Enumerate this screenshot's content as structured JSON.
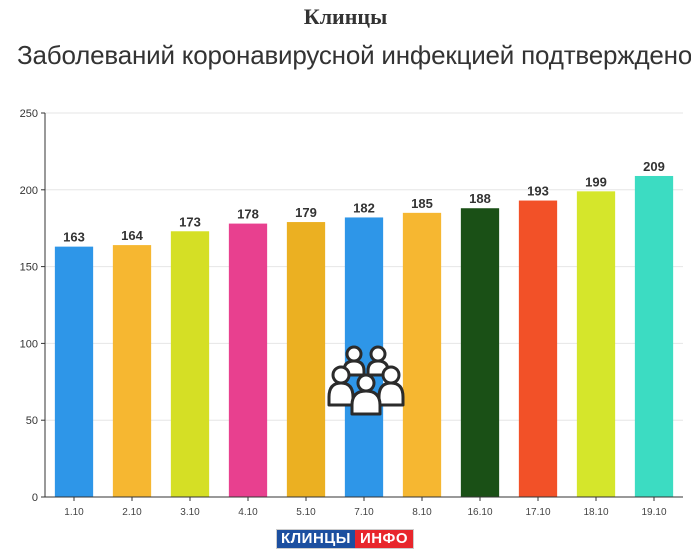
{
  "header": {
    "title": "Клинцы"
  },
  "logo": {
    "left_text": "КЛИНЦЫ",
    "right_text": "ИНФО"
  },
  "icon": {
    "name": "people-group-icon"
  },
  "chart_data": {
    "type": "bar",
    "title": "Заболеваний коронавирусной инфекцией подтверждено",
    "categories": [
      "1.10",
      "2.10",
      "3.10",
      "4.10",
      "5.10",
      "7.10",
      "8.10",
      "16.10",
      "17.10",
      "18.10",
      "19.10"
    ],
    "values": [
      163,
      164,
      173,
      178,
      179,
      182,
      185,
      188,
      193,
      199,
      209
    ],
    "colors": [
      "#2e96e8",
      "#f6b731",
      "#d5df25",
      "#e8408f",
      "#ebb022",
      "#2e96e8",
      "#f6b731",
      "#1a5016",
      "#f25128",
      "#d5e62b",
      "#3cdcc2"
    ],
    "ylim": [
      0,
      250
    ],
    "yticks": [
      0,
      50,
      100,
      150,
      200,
      250
    ],
    "grid": true,
    "legend": "none",
    "show_data_labels": true
  }
}
